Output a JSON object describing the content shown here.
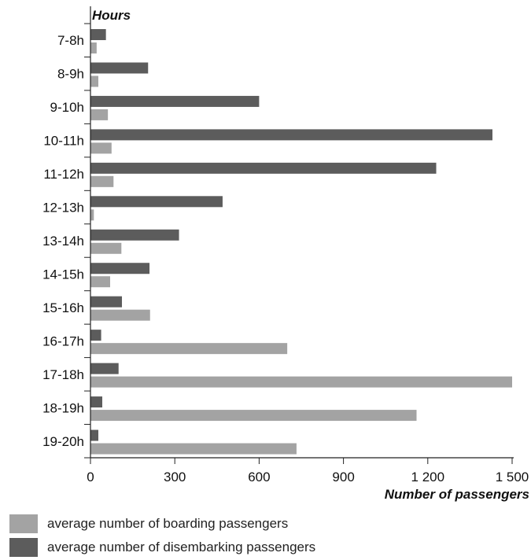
{
  "chart_data": {
    "type": "bar",
    "orientation": "horizontal",
    "ylabel": "Hours",
    "xlabel": "Number of passengers",
    "categories": [
      "7-8h",
      "8-9h",
      "9-10h",
      "10-11h",
      "11-12h",
      "12-13h",
      "13-14h",
      "14-15h",
      "15-16h",
      "16-17h",
      "17-18h",
      "18-19h",
      "19-20h"
    ],
    "series": [
      {
        "name": "average number of disembarking passengers",
        "color": "#5c5c5c",
        "values": [
          55,
          205,
          600,
          1430,
          1230,
          470,
          315,
          210,
          112,
          38,
          100,
          42,
          28
        ]
      },
      {
        "name": "average number of boarding passengers",
        "color": "#a3a3a3",
        "values": [
          22,
          28,
          62,
          75,
          82,
          12,
          110,
          70,
          212,
          700,
          1500,
          1160,
          733
        ]
      }
    ],
    "xlim": [
      0,
      1500
    ],
    "xticks": [
      0,
      300,
      600,
      900,
      1200,
      1500
    ],
    "xtick_labels": [
      "0",
      "300",
      "600",
      "900",
      "1 200",
      "1 500"
    ],
    "grid": false,
    "legend_position": "bottom-left",
    "legend": [
      {
        "label": "average number of boarding passengers",
        "color": "#a3a3a3"
      },
      {
        "label": "average number of disembarking passengers",
        "color": "#5c5c5c"
      }
    ]
  }
}
